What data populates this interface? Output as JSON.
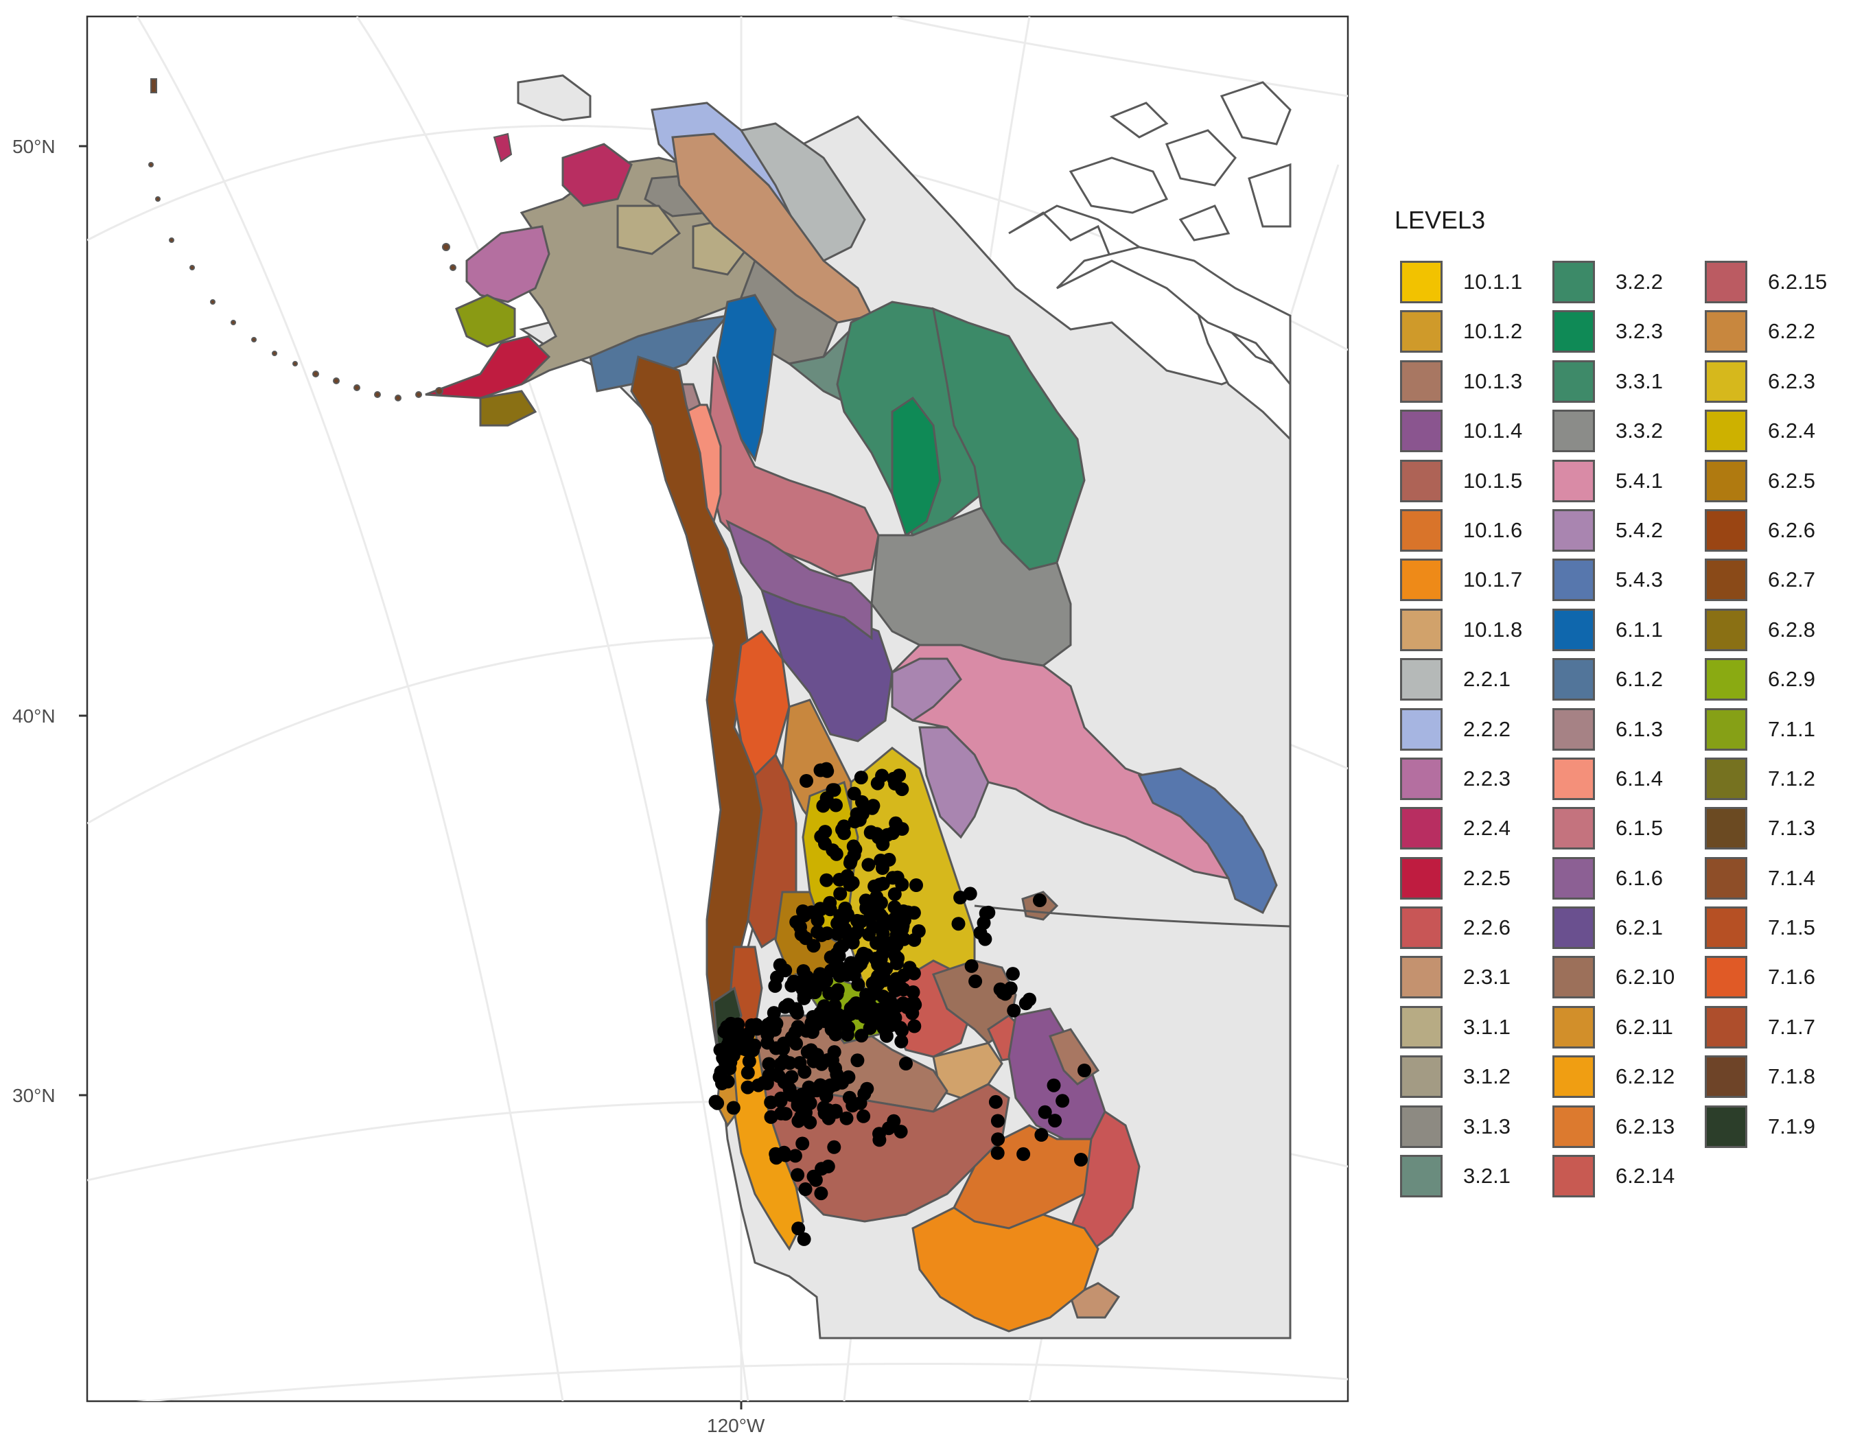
{
  "map": {
    "axis_labels": {
      "lat_50": "50°N",
      "lat_40": "40°N",
      "lat_30": "30°N",
      "lon_120": "120°W"
    },
    "colors": {
      "background": "#e6e6e6",
      "outline": "#595959",
      "graticule": "#ebebeb",
      "points": "#000000"
    },
    "points_description": "black occurrence points concentrated across the Pacific Northwest interior and southwest"
  },
  "legend": {
    "title": "LEVEL3",
    "items": [
      {
        "label": "10.1.1",
        "color": "#f2c200"
      },
      {
        "label": "10.1.2",
        "color": "#cf9a2a"
      },
      {
        "label": "10.1.3",
        "color": "#a87762"
      },
      {
        "label": "10.1.4",
        "color": "#8a558f"
      },
      {
        "label": "10.1.5",
        "color": "#ae6356"
      },
      {
        "label": "10.1.6",
        "color": "#d9742a"
      },
      {
        "label": "10.1.7",
        "color": "#ee8a18"
      },
      {
        "label": "10.1.8",
        "color": "#d1a26b"
      },
      {
        "label": "2.2.1",
        "color": "#b5b9b8"
      },
      {
        "label": "2.2.2",
        "color": "#a6b5e1"
      },
      {
        "label": "2.2.3",
        "color": "#b46fa0"
      },
      {
        "label": "2.2.4",
        "color": "#b82e61"
      },
      {
        "label": "2.2.5",
        "color": "#bf1c40"
      },
      {
        "label": "2.2.6",
        "color": "#c85656"
      },
      {
        "label": "2.3.1",
        "color": "#c4926f"
      },
      {
        "label": "3.1.1",
        "color": "#b7ab84"
      },
      {
        "label": "3.1.2",
        "color": "#a39b84"
      },
      {
        "label": "3.1.3",
        "color": "#8d8a82"
      },
      {
        "label": "3.2.1",
        "color": "#6a8c7e"
      },
      {
        "label": "3.2.2",
        "color": "#3c8a68"
      },
      {
        "label": "3.2.3",
        "color": "#0f8a56"
      },
      {
        "label": "3.3.1",
        "color": "#3e8a69"
      },
      {
        "label": "3.3.2",
        "color": "#8b8c89"
      },
      {
        "label": "5.4.1",
        "color": "#d98ba6"
      },
      {
        "label": "5.4.2",
        "color": "#a985b0"
      },
      {
        "label": "5.4.3",
        "color": "#5777ad"
      },
      {
        "label": "6.1.1",
        "color": "#0f67ad"
      },
      {
        "label": "6.1.2",
        "color": "#52759a"
      },
      {
        "label": "6.1.3",
        "color": "#a68285"
      },
      {
        "label": "6.1.4",
        "color": "#f4907a"
      },
      {
        "label": "6.1.5",
        "color": "#c4737e"
      },
      {
        "label": "6.1.6",
        "color": "#8c6094"
      },
      {
        "label": "6.2.1",
        "color": "#6a508f"
      },
      {
        "label": "6.2.10",
        "color": "#9c705a"
      },
      {
        "label": "6.2.11",
        "color": "#d28f2a"
      },
      {
        "label": "6.2.12",
        "color": "#f09e12"
      },
      {
        "label": "6.2.13",
        "color": "#dc7a2f"
      },
      {
        "label": "6.2.14",
        "color": "#c85a52"
      },
      {
        "label": "6.2.15",
        "color": "#bb5b62"
      },
      {
        "label": "6.2.2",
        "color": "#c8873e"
      },
      {
        "label": "6.2.3",
        "color": "#d6b81c"
      },
      {
        "label": "6.2.4",
        "color": "#cdb100"
      },
      {
        "label": "6.2.5",
        "color": "#b07a10"
      },
      {
        "label": "6.2.6",
        "color": "#9a4513"
      },
      {
        "label": "6.2.7",
        "color": "#8a4a18"
      },
      {
        "label": "6.2.8",
        "color": "#8a7014"
      },
      {
        "label": "6.2.9",
        "color": "#8aaa12"
      },
      {
        "label": "7.1.1",
        "color": "#86a016"
      },
      {
        "label": "7.1.2",
        "color": "#767220"
      },
      {
        "label": "7.1.3",
        "color": "#6b4a22"
      },
      {
        "label": "7.1.4",
        "color": "#8e4e28"
      },
      {
        "label": "7.1.5",
        "color": "#b65024"
      },
      {
        "label": "7.1.6",
        "color": "#e05a26"
      },
      {
        "label": "7.1.7",
        "color": "#ae4e2c"
      },
      {
        "label": "7.1.8",
        "color": "#6e4428"
      },
      {
        "label": "7.1.9",
        "color": "#2c3e2a"
      }
    ]
  }
}
